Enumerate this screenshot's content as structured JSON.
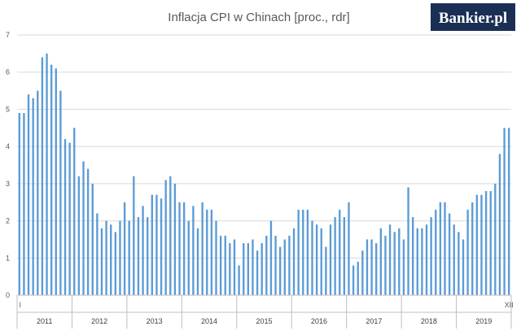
{
  "logo": {
    "text": "Bankier.pl"
  },
  "chart_data": {
    "type": "bar",
    "title": "Inflacja CPI w Chinach [proc., rdr]",
    "xlabel": "",
    "ylabel": "",
    "ylim": [
      0,
      7
    ],
    "yticks": [
      "0",
      "1",
      "2",
      "3",
      "4",
      "5",
      "6",
      "7"
    ],
    "grid": true,
    "legend": "none",
    "bar_color": "#5b9bd5",
    "x_ticks": {
      "first": "I",
      "last": "XII"
    },
    "years": [
      "2011",
      "2012",
      "2013",
      "2014",
      "2015",
      "2016",
      "2017",
      "2018",
      "2019"
    ],
    "series": [
      {
        "values": [
          4.9,
          4.9,
          5.4,
          5.3,
          5.5,
          6.4,
          6.5,
          6.2,
          6.1,
          5.5,
          4.2,
          4.1,
          4.5,
          3.2,
          3.6,
          3.4,
          3.0,
          2.2,
          1.8,
          2.0,
          1.9,
          1.7,
          2.0,
          2.5,
          2.0,
          3.2,
          2.1,
          2.4,
          2.1,
          2.7,
          2.7,
          2.6,
          3.1,
          3.2,
          3.0,
          2.5,
          2.5,
          2.0,
          2.4,
          1.8,
          2.5,
          2.3,
          2.3,
          2.0,
          1.6,
          1.6,
          1.4,
          1.5,
          0.8,
          1.4,
          1.4,
          1.5,
          1.2,
          1.4,
          1.6,
          2.0,
          1.6,
          1.3,
          1.5,
          1.6,
          1.8,
          2.3,
          2.3,
          2.3,
          2.0,
          1.9,
          1.8,
          1.3,
          1.9,
          2.1,
          2.3,
          2.1,
          2.5,
          0.8,
          0.9,
          1.2,
          1.5,
          1.5,
          1.4,
          1.8,
          1.6,
          1.9,
          1.7,
          1.8,
          1.5,
          2.9,
          2.1,
          1.8,
          1.8,
          1.9,
          2.1,
          2.3,
          2.5,
          2.5,
          2.2,
          1.9,
          1.7,
          1.5,
          2.3,
          2.5,
          2.7,
          2.7,
          2.8,
          2.8,
          3.0,
          3.8,
          4.5,
          4.5
        ]
      }
    ]
  }
}
